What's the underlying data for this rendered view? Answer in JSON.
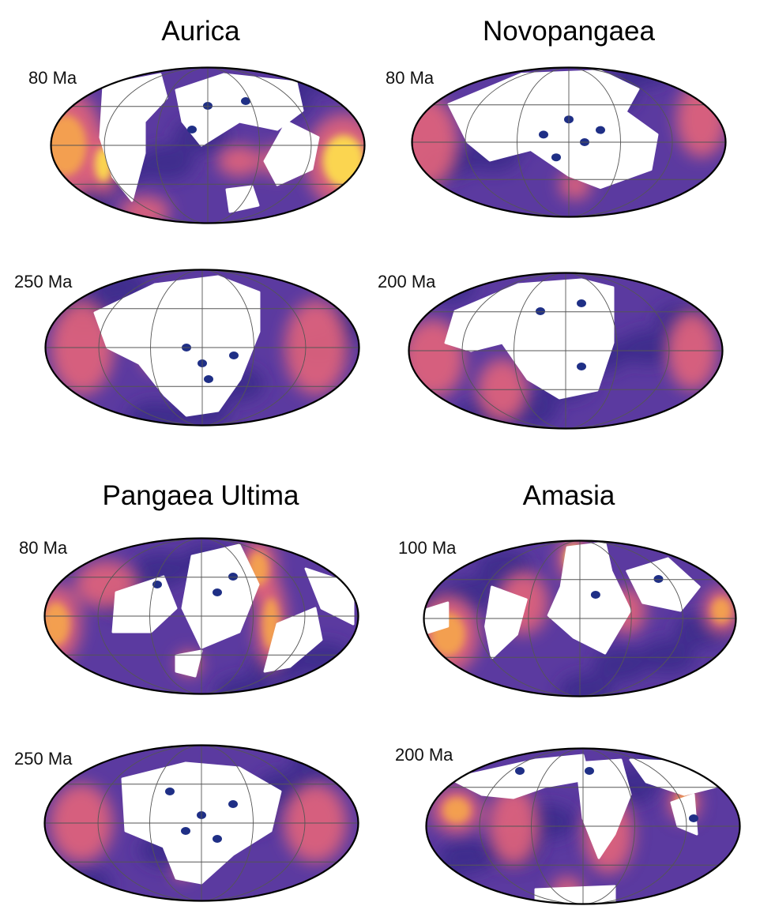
{
  "colors": {
    "ocean_dark": "#3b2a8a",
    "ocean_mid": "#5b3aa0",
    "warm": "#e3647a",
    "hot": "#f6a64a",
    "hottest": "#ffe24a",
    "land": "#ffffff",
    "lakes": "#1f2f86",
    "grid": "#555555",
    "outline": "#000000"
  },
  "projection": "mollweide",
  "scenarios": [
    {
      "title": "Aurica",
      "maps": [
        {
          "age": "80 Ma"
        },
        {
          "age": "250 Ma"
        }
      ]
    },
    {
      "title": "Novopangaea",
      "maps": [
        {
          "age": "80 Ma"
        },
        {
          "age": "200 Ma"
        }
      ]
    },
    {
      "title": "Pangaea Ultima",
      "maps": [
        {
          "age": "80 Ma"
        },
        {
          "age": "250 Ma"
        }
      ]
    },
    {
      "title": "Amasia",
      "maps": [
        {
          "age": "100 Ma"
        },
        {
          "age": "200 Ma"
        }
      ]
    }
  ]
}
